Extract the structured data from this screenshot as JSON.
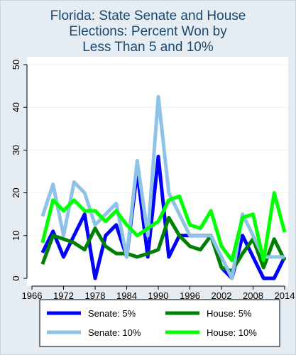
{
  "chart_data": {
    "type": "line",
    "title": [
      "Florida: State Senate and House",
      "Elections: Percent Won by",
      "Less Than 5 and 10%"
    ],
    "xlabel": "",
    "ylabel": "",
    "xlim": [
      1966,
      2014
    ],
    "ylim": [
      0,
      50
    ],
    "xticks": [
      "1966",
      "1972",
      "1978",
      "1984",
      "1990",
      "1996",
      "2002",
      "2008",
      "2014"
    ],
    "yticks": [
      "0",
      "10",
      "20",
      "30",
      "40",
      "50"
    ],
    "grid": true,
    "legend_position": "bottom",
    "x": [
      1968,
      1970,
      1972,
      1974,
      1976,
      1978,
      1980,
      1982,
      1984,
      1986,
      1988,
      1990,
      1992,
      1994,
      1996,
      1998,
      2000,
      2002,
      2004,
      2006,
      2008,
      2010,
      2012,
      2014
    ],
    "series": [
      {
        "name": "Senate: 5%",
        "color": "#0000ff",
        "values": [
          6,
          11,
          5,
          10,
          15,
          0,
          10,
          12.5,
          5,
          25,
          5,
          28.5,
          5,
          10,
          10,
          10,
          10,
          2.5,
          0,
          10,
          5,
          0,
          0,
          5
        ]
      },
      {
        "name": "House: 5%",
        "color": "#008000",
        "values": [
          3.3,
          10,
          9.2,
          8.3,
          6.7,
          11.7,
          7.5,
          5.8,
          5.8,
          5,
          5.8,
          6.7,
          14.2,
          10,
          7.5,
          6.7,
          10,
          2.5,
          1.7,
          5.8,
          9.2,
          2.5,
          9.2,
          4.2
        ]
      },
      {
        "name": "Senate: 10%",
        "color": "#8ec3e8",
        "values": [
          14.5,
          22,
          10,
          22.5,
          20,
          12.5,
          15,
          17.5,
          5,
          27.5,
          10,
          42.5,
          20,
          15,
          10,
          10,
          10,
          5,
          0,
          15,
          10,
          5,
          5,
          5
        ]
      },
      {
        "name": "House: 10%",
        "color": "#00ff00",
        "values": [
          8.3,
          18.3,
          15.8,
          18.3,
          15.8,
          15.8,
          13.3,
          15.8,
          12.5,
          10,
          11.7,
          13.3,
          18.3,
          19.2,
          12.5,
          11.7,
          15.8,
          7.5,
          4.2,
          14.2,
          15,
          4.2,
          20,
          10.8
        ]
      }
    ]
  }
}
